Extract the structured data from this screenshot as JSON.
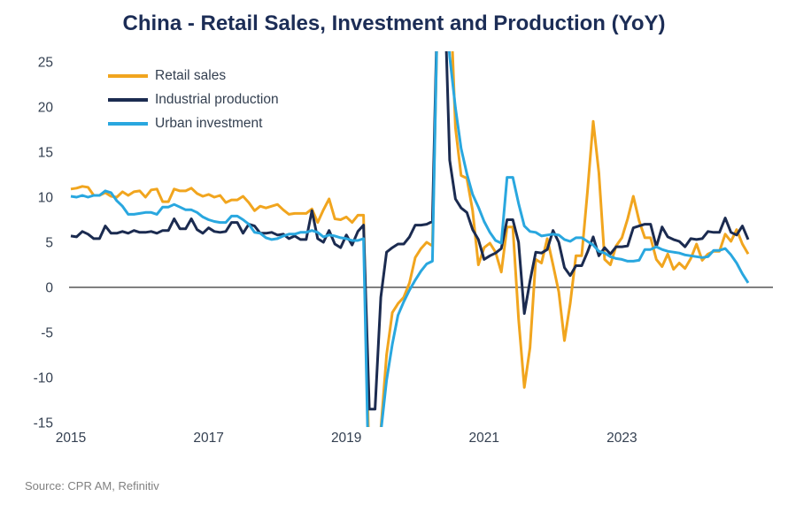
{
  "title": "China - Retail Sales, Investment and Production (YoY)",
  "source": "Source: CPR AM, Refinitiv",
  "colors": {
    "retail_sales": "#F1A51E",
    "industrial_production": "#1B2B50",
    "urban_investment": "#29A7DF",
    "title_text": "#1C2D56",
    "axis_text": "#333F50",
    "zero_line": "#6E6E6E"
  },
  "chart_data": {
    "type": "line",
    "title": "China - Retail Sales, Investment and Production (YoY)",
    "xlabel": "",
    "ylabel": "",
    "frequency": "monthly",
    "ylim": [
      -15,
      25
    ],
    "clip_to_ylim": true,
    "grid": false,
    "zero_line": true,
    "legend_position": "top-left",
    "y_ticks": [
      25,
      20,
      15,
      10,
      5,
      0,
      -5,
      -10,
      -15
    ],
    "x_tick_labels": [
      "2015",
      "2017",
      "2019",
      "2021",
      "2023"
    ],
    "x_tick_month_indices": [
      0,
      24,
      48,
      72,
      96
    ],
    "series": [
      {
        "name": "Retail sales",
        "color": "#F1A51E",
        "values": [
          10.9,
          11,
          11.2,
          11.1,
          10.2,
          10.2,
          10.5,
          10.1,
          10,
          10.6,
          10.2,
          10.6,
          10.7,
          10,
          10.8,
          10.9,
          9.5,
          9.5,
          10.9,
          10.7,
          10.7,
          11,
          10.4,
          10.1,
          10.3,
          10,
          10.2,
          9.4,
          9.7,
          9.7,
          10.1,
          9.4,
          8.5,
          9,
          8.8,
          9,
          9.2,
          8.6,
          8.1,
          8.2,
          8.2,
          8.2,
          8.7,
          7.2,
          8.6,
          9.8,
          7.6,
          7.5,
          7.8,
          7.2,
          8,
          8,
          -20.5,
          -20.5,
          -15.8,
          -7.5,
          -2.8,
          -1.8,
          -1.1,
          0.5,
          3.3,
          4.3,
          5,
          4.6,
          33.8,
          33.8,
          34.2,
          17.7,
          12.4,
          12.1,
          8.5,
          2.5,
          4.4,
          4.9,
          3.9,
          1.7,
          6.7,
          6.7,
          -3.5,
          -11.1,
          -6.7,
          3.1,
          2.7,
          5.4,
          2.5,
          -0.5,
          -5.9,
          -1.8,
          3.5,
          3.5,
          10.6,
          18.4,
          12.7,
          3.1,
          2.5,
          4.6,
          5.5,
          7.6,
          10.1,
          7.4,
          5.5,
          5.5,
          3.1,
          2.3,
          3.7,
          2,
          2.7,
          2.1,
          3.2,
          4.8,
          3,
          3.7,
          4,
          4,
          5.9,
          5.1,
          6.4,
          4.8,
          3.7
        ]
      },
      {
        "name": "Industrial production",
        "color": "#1B2B50",
        "values": [
          5.7,
          5.6,
          6.2,
          5.9,
          5.4,
          5.4,
          6.8,
          6,
          6,
          6.2,
          6,
          6.3,
          6.1,
          6.1,
          6.2,
          6,
          6.3,
          6.3,
          7.6,
          6.5,
          6.5,
          7.6,
          6.4,
          6,
          6.6,
          6.2,
          6.1,
          6.2,
          7.2,
          7.2,
          6,
          7,
          6.8,
          6,
          6,
          6.1,
          5.8,
          5.9,
          5.4,
          5.7,
          5.3,
          5.3,
          8.5,
          5.4,
          5,
          6.3,
          4.8,
          4.4,
          5.8,
          4.7,
          6.2,
          6.9,
          -13.5,
          -13.5,
          -1.1,
          3.9,
          4.4,
          4.8,
          4.8,
          5.6,
          6.9,
          6.9,
          7,
          7.3,
          35.1,
          35.1,
          14.1,
          9.8,
          8.8,
          8.3,
          6.4,
          5.3,
          3.1,
          3.5,
          3.8,
          4.3,
          7.5,
          7.5,
          5,
          -2.9,
          0.7,
          3.9,
          3.8,
          4.2,
          6.3,
          5,
          2.2,
          1.3,
          2.4,
          2.4,
          3.9,
          5.6,
          3.5,
          4.4,
          3.7,
          4.5,
          4.5,
          4.6,
          6.6,
          6.8,
          7,
          7,
          4.5,
          6.7,
          5.6,
          5.3,
          5.1,
          4.5,
          5.4,
          5.3,
          5.4,
          6.2,
          6.1,
          6.1,
          7.7,
          6.1,
          5.8,
          6.8,
          5.3
        ]
      },
      {
        "name": "Urban investment",
        "color": "#29A7DF",
        "values": [
          10.1,
          10,
          10.2,
          10,
          10.2,
          10.2,
          10.7,
          10.5,
          9.6,
          9,
          8.1,
          8.1,
          8.2,
          8.3,
          8.3,
          8.1,
          8.9,
          8.9,
          9.2,
          8.9,
          8.6,
          8.6,
          8.3,
          7.8,
          7.5,
          7.3,
          7.2,
          7.2,
          7.9,
          7.9,
          7.5,
          7,
          6.1,
          6,
          5.5,
          5.3,
          5.4,
          5.7,
          5.9,
          5.9,
          6.1,
          6.1,
          6.3,
          6.1,
          5.6,
          5.8,
          5.7,
          5.5,
          5.4,
          5.2,
          5.2,
          5.4,
          -24.5,
          -24.5,
          -16.1,
          -10.3,
          -6.3,
          -3.1,
          -1.6,
          -0.3,
          0.8,
          1.8,
          2.6,
          2.9,
          35,
          35,
          25.6,
          19.9,
          15.4,
          12.6,
          10.3,
          8.9,
          7.3,
          6.1,
          5.2,
          4.9,
          12.2,
          12.2,
          9.3,
          6.8,
          6.2,
          6.1,
          5.7,
          5.8,
          5.9,
          5.8,
          5.3,
          5.1,
          5.5,
          5.5,
          5.1,
          4.7,
          4,
          3.8,
          3.4,
          3.2,
          3.1,
          2.9,
          2.9,
          3,
          4.2,
          4.2,
          4.5,
          4.2,
          4,
          3.9,
          3.8,
          3.6,
          3.5,
          3.4,
          3.3,
          3.4,
          4.1,
          4.1,
          4.3,
          3.6,
          2.7,
          1.5,
          0.5
        ]
      }
    ]
  }
}
